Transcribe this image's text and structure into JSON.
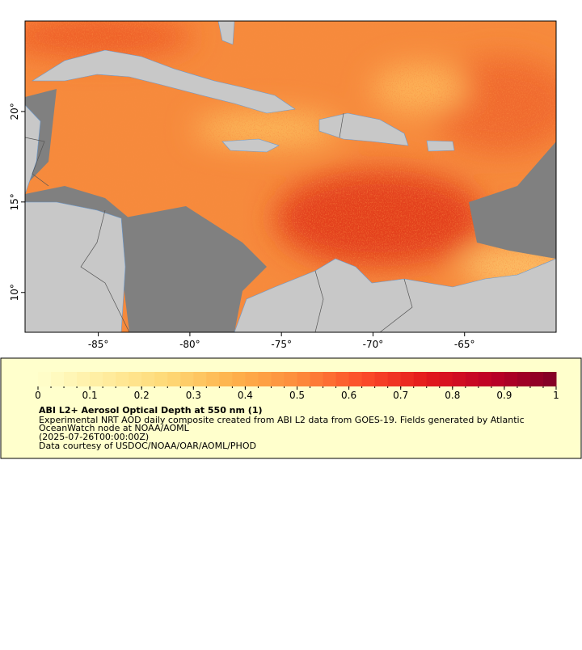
{
  "map": {
    "xlim": [
      -89,
      -60
    ],
    "ylim": [
      7.8,
      25
    ],
    "xticks": [
      {
        "value": -85,
        "label": "-85°"
      },
      {
        "value": -80,
        "label": "-80°"
      },
      {
        "value": -75,
        "label": "-75°"
      },
      {
        "value": -70,
        "label": "-70°"
      },
      {
        "value": -65,
        "label": "-65°"
      }
    ],
    "yticks": [
      {
        "value": 10,
        "label": "10°"
      },
      {
        "value": 15,
        "label": "15°"
      },
      {
        "value": 20,
        "label": "20°"
      }
    ]
  },
  "colorbar": {
    "lim": [
      0,
      1
    ],
    "ticks": [
      0,
      0.1,
      0.2,
      0.3,
      0.4,
      0.5,
      0.6,
      0.7,
      0.8,
      0.9,
      1
    ],
    "colors": [
      "#ffffcc",
      "#ffeda0",
      "#fed976",
      "#feb24c",
      "#fd8d3c",
      "#fc4e2a",
      "#e31a1c",
      "#bd0026",
      "#800026"
    ]
  },
  "legend": {
    "title": "ABI L2+ Aerosol Optical Depth at 550 nm (1)",
    "lines": [
      "Experimental NRT AOD daily composite created from ABI L2 data from GOES-19. Fields generated by Atlantic",
      "OceanWatch node at NOAA/AOML",
      "(2025-07-26T00:00:00Z)",
      "Data courtesy of USDOC/NOAA/OAR/AOML/PHOD"
    ]
  }
}
